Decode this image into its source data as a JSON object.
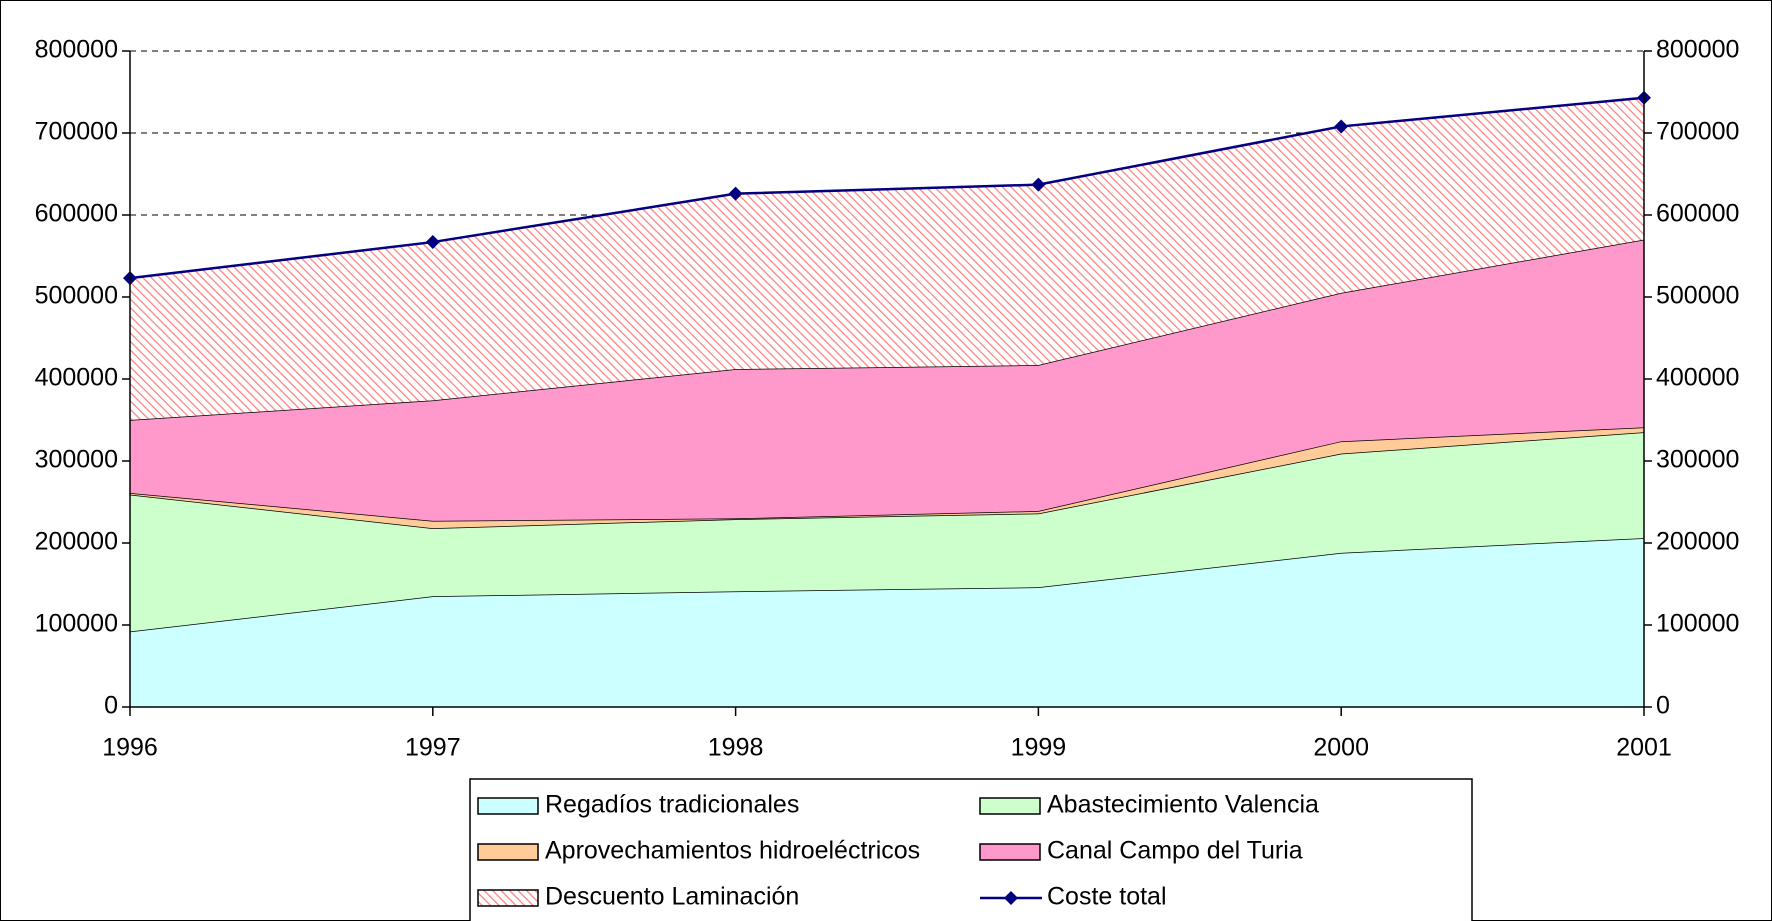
{
  "chart_data": {
    "type": "stacked_area_line",
    "categories": [
      "1996",
      "1997",
      "1998",
      "1999",
      "2000",
      "2001"
    ],
    "series": [
      {
        "name": "Regadíos tradicionales",
        "color": "#ccffff",
        "values": [
          92000,
          135000,
          141000,
          146000,
          188000,
          206000
        ]
      },
      {
        "name": "Abastecimiento Valencia",
        "color": "#ccffcc",
        "values": [
          167000,
          83000,
          88000,
          90000,
          121000,
          129000
        ]
      },
      {
        "name": "Aprovechamientos hidroeléctricos",
        "color": "#ffcc99",
        "values": [
          2000,
          9000,
          1000,
          3000,
          15000,
          6000
        ]
      },
      {
        "name": "Canal Campo del Turia",
        "color": "#ff99cc",
        "values": [
          89000,
          147000,
          182000,
          178000,
          181000,
          229000
        ]
      },
      {
        "name": "Descuento Laminación",
        "color": "#ff8080",
        "pattern": "hatch",
        "values": [
          173000,
          193000,
          214000,
          220000,
          203000,
          173000
        ]
      },
      {
        "name": "Coste total",
        "color": "#000080",
        "axis": "y2",
        "kind": "line",
        "values": [
          523000,
          567000,
          626000,
          637000,
          708000,
          743000
        ]
      }
    ],
    "ylim": [
      0,
      800000
    ],
    "yticks": [
      0,
      100000,
      200000,
      300000,
      400000,
      500000,
      600000,
      700000,
      800000
    ],
    "y2lim": [
      0,
      800000
    ],
    "y2ticks": [
      0,
      100000,
      200000,
      300000,
      400000,
      500000,
      600000,
      700000,
      800000
    ],
    "grid": true,
    "legend": "bottom"
  }
}
